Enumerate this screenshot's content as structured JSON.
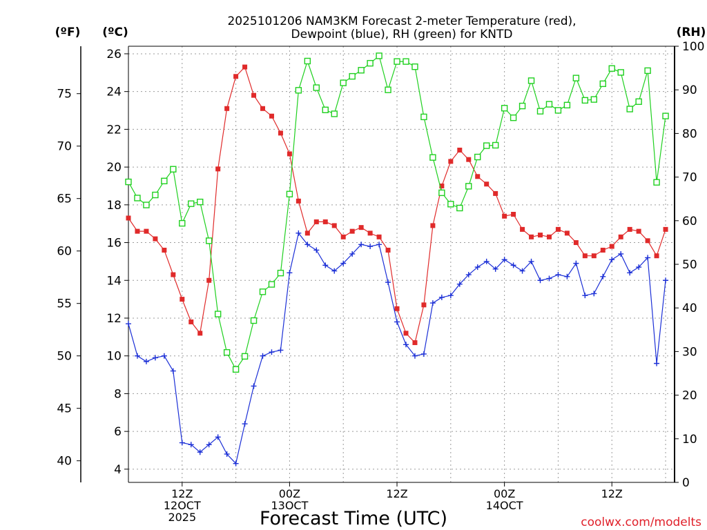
{
  "chart_data": {
    "type": "line",
    "title_line1": "2025101206 NAM3KM Forecast 2-meter Temperature (red),",
    "title_line2": "Dewpoint (blue), RH (green) for KNTD",
    "units": {
      "fahrenheit": "(ºF)",
      "celsius": "(ºC)",
      "rh": "(RH)"
    },
    "xlabel": "Forecast Time (UTC)",
    "credit": "coolwx.com/modelts",
    "xlim": [
      0,
      61
    ],
    "celsius_axis": {
      "ylim": [
        3.3,
        26.4
      ],
      "ticks": [
        "4",
        "6",
        "8",
        "10",
        "12",
        "14",
        "16",
        "18",
        "20",
        "22",
        "24",
        "26"
      ]
    },
    "fahrenheit_axis": {
      "ylim": [
        37.94,
        79.52
      ],
      "ticks": [
        "40",
        "45",
        "50",
        "55",
        "60",
        "65",
        "70",
        "75"
      ]
    },
    "rh_axis": {
      "ylim": [
        0,
        100
      ],
      "ticks": [
        "0",
        "10",
        "20",
        "30",
        "40",
        "50",
        "60",
        "70",
        "80",
        "90",
        "100"
      ]
    },
    "x_ticks": [
      {
        "x": 6,
        "lines": [
          "12Z",
          "12OCT",
          "2025"
        ]
      },
      {
        "x": 18,
        "lines": [
          "00Z",
          "13OCT"
        ]
      },
      {
        "x": 30,
        "lines": [
          "12Z"
        ]
      },
      {
        "x": 42,
        "lines": [
          "00Z",
          "14OCT"
        ]
      },
      {
        "x": 54,
        "lines": [
          "12Z"
        ]
      }
    ],
    "x_grid": [
      0,
      6,
      12,
      18,
      24,
      30,
      36,
      42,
      48,
      54,
      60
    ],
    "series": [
      {
        "name": "2-meter Temperature",
        "axis": "celsius",
        "color": "#e02a2a",
        "marker": "filled-square",
        "values": [
          17.3,
          16.6,
          16.6,
          16.2,
          15.6,
          14.3,
          13.0,
          11.8,
          11.2,
          14.0,
          19.9,
          23.1,
          24.8,
          25.3,
          23.8,
          23.1,
          22.7,
          21.8,
          20.7,
          18.2,
          16.5,
          17.1,
          17.1,
          16.9,
          16.3,
          16.6,
          16.8,
          16.5,
          16.3,
          15.6,
          12.5,
          11.2,
          10.7,
          12.7,
          16.9,
          19.0,
          20.3,
          20.9,
          20.4,
          19.5,
          19.1,
          18.6,
          17.4,
          17.5,
          16.7,
          16.3,
          16.4,
          16.3,
          16.7,
          16.5,
          16.0,
          15.3,
          15.3,
          15.6,
          15.8,
          16.3,
          16.7,
          16.6,
          16.1,
          15.3,
          16.7
        ]
      },
      {
        "name": "Dewpoint",
        "axis": "celsius",
        "color": "#1a2ed6",
        "marker": "plus",
        "values": [
          11.7,
          10.0,
          9.7,
          9.9,
          10.0,
          9.2,
          5.4,
          5.3,
          4.9,
          5.3,
          5.7,
          4.8,
          4.3,
          6.4,
          8.4,
          10.0,
          10.2,
          10.3,
          14.4,
          16.5,
          15.9,
          15.6,
          14.8,
          14.5,
          14.9,
          15.4,
          15.9,
          15.8,
          15.9,
          13.9,
          11.8,
          10.6,
          10.0,
          10.1,
          12.8,
          13.1,
          13.2,
          13.8,
          14.3,
          14.7,
          15.0,
          14.6,
          15.1,
          14.8,
          14.5,
          15.0,
          14.0,
          14.1,
          14.3,
          14.2,
          14.9,
          13.2,
          13.3,
          14.2,
          15.1,
          15.4,
          14.4,
          14.7,
          15.2,
          9.6,
          14.0
        ]
      },
      {
        "name": "RH",
        "axis": "rh",
        "color": "#1ed01e",
        "marker": "open-square",
        "values": [
          68.9,
          65.2,
          63.6,
          65.9,
          69.1,
          71.8,
          59.4,
          63.9,
          64.3,
          55.4,
          38.6,
          29.8,
          25.9,
          28.9,
          37.1,
          43.7,
          45.4,
          48.0,
          66.1,
          89.9,
          96.6,
          90.5,
          85.4,
          84.5,
          91.6,
          93.1,
          94.5,
          96.1,
          97.8,
          90.0,
          96.5,
          96.5,
          95.3,
          83.8,
          74.5,
          66.4,
          63.8,
          62.9,
          67.9,
          74.6,
          77.2,
          77.3,
          85.8,
          83.6,
          86.3,
          92.1,
          85.1,
          86.7,
          85.3,
          86.5,
          92.7,
          87.6,
          87.8,
          91.4,
          94.9,
          94.0,
          85.6,
          87.3,
          94.4,
          68.8,
          84.0
        ]
      }
    ]
  }
}
